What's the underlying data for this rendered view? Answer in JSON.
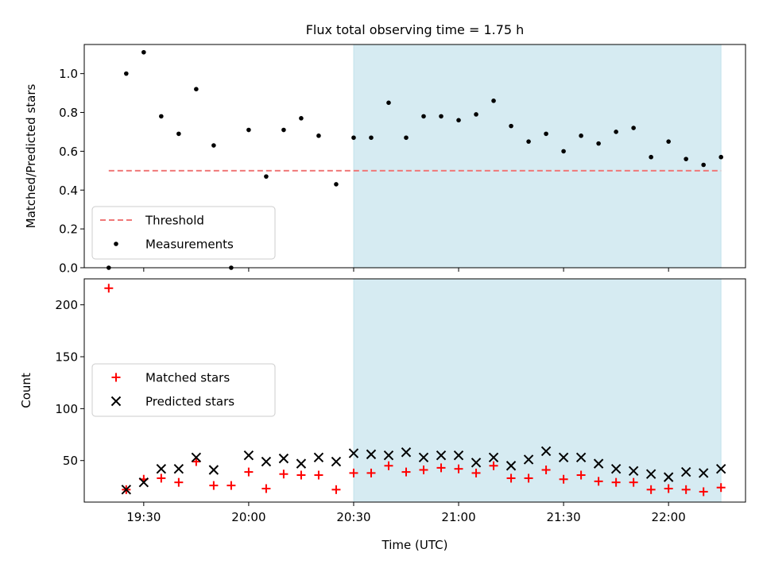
{
  "title": "Flux total observing time = 1.75 h",
  "colors": {
    "threshold": "#f07878",
    "measurements": "#000000",
    "matched": "#ff0000",
    "predicted": "#000000",
    "shade": "#add8e6"
  },
  "chart_data": [
    {
      "type": "scatter",
      "ylabel": "Matched/Predicted stars",
      "ylim": [
        0,
        1.15
      ],
      "yticks": [
        "0.0",
        "0.2",
        "0.4",
        "0.6",
        "0.8",
        "1.0"
      ],
      "shaded_interval": [
        "20:30",
        "22:15"
      ],
      "legend": {
        "placement": "lower-left",
        "entries": [
          "Threshold",
          "Measurements"
        ]
      },
      "threshold": {
        "name": "Threshold",
        "value": 0.5,
        "x_range": [
          "19:20",
          "22:15"
        ]
      },
      "series": [
        {
          "name": "Measurements",
          "x": [
            "19:20",
            "19:25",
            "19:30",
            "19:35",
            "19:40",
            "19:45",
            "19:50",
            "19:55",
            "20:00",
            "20:05",
            "20:10",
            "20:15",
            "20:20",
            "20:25",
            "20:30",
            "20:35",
            "20:40",
            "20:45",
            "20:50",
            "20:55",
            "21:00",
            "21:05",
            "21:10",
            "21:15",
            "21:20",
            "21:25",
            "21:30",
            "21:35",
            "21:40",
            "21:45",
            "21:50",
            "21:55",
            "22:00",
            "22:05",
            "22:10",
            "22:15"
          ],
          "y": [
            0.0,
            1.0,
            1.11,
            0.78,
            0.69,
            0.92,
            0.63,
            0.0,
            0.71,
            0.47,
            0.71,
            0.77,
            0.68,
            0.43,
            0.67,
            0.67,
            0.85,
            0.67,
            0.78,
            0.78,
            0.76,
            0.79,
            0.86,
            0.73,
            0.65,
            0.69,
            0.6,
            0.68,
            0.64,
            0.7,
            0.72,
            0.57,
            0.65,
            0.56,
            0.53,
            0.57
          ]
        }
      ]
    },
    {
      "type": "scatter",
      "xlabel": "Time (UTC)",
      "ylabel": "Count",
      "ylim": [
        10,
        225
      ],
      "yticks": [
        "50",
        "100",
        "150",
        "200"
      ],
      "xticks": [
        "19:30",
        "20:00",
        "20:30",
        "21:00",
        "21:30",
        "22:00"
      ],
      "shaded_interval": [
        "20:30",
        "22:15"
      ],
      "legend": {
        "placement": "center-left",
        "entries": [
          "Matched stars",
          "Predicted stars"
        ]
      },
      "series": [
        {
          "name": "Matched stars",
          "x": [
            "19:20",
            "19:25",
            "19:30",
            "19:35",
            "19:40",
            "19:45",
            "19:50",
            "19:55",
            "20:00",
            "20:05",
            "20:10",
            "20:15",
            "20:20",
            "20:25",
            "20:30",
            "20:35",
            "20:40",
            "20:45",
            "20:50",
            "20:55",
            "21:00",
            "21:05",
            "21:10",
            "21:15",
            "21:20",
            "21:25",
            "21:30",
            "21:35",
            "21:40",
            "21:45",
            "21:50",
            "21:55",
            "22:00",
            "22:05",
            "22:10",
            "22:15"
          ],
          "y": [
            216,
            22,
            32,
            33,
            29,
            49,
            26,
            26,
            39,
            23,
            37,
            36,
            36,
            22,
            38,
            38,
            45,
            39,
            41,
            43,
            42,
            38,
            45,
            33,
            33,
            41,
            32,
            36,
            30,
            29,
            29,
            22,
            23,
            22,
            20,
            24
          ]
        },
        {
          "name": "Predicted stars",
          "x": [
            "19:25",
            "19:30",
            "19:35",
            "19:40",
            "19:45",
            "19:50",
            "20:00",
            "20:05",
            "20:10",
            "20:15",
            "20:20",
            "20:25",
            "20:30",
            "20:35",
            "20:40",
            "20:45",
            "20:50",
            "20:55",
            "21:00",
            "21:05",
            "21:10",
            "21:15",
            "21:20",
            "21:25",
            "21:30",
            "21:35",
            "21:40",
            "21:45",
            "21:50",
            "21:55",
            "22:00",
            "22:05",
            "22:10",
            "22:15"
          ],
          "y": [
            22,
            29,
            42,
            42,
            53,
            41,
            55,
            49,
            52,
            47,
            53,
            49,
            57,
            56,
            55,
            58,
            53,
            55,
            55,
            48,
            53,
            45,
            51,
            59,
            53,
            53,
            47,
            42,
            40,
            37,
            34,
            39,
            38,
            42
          ]
        }
      ]
    }
  ]
}
